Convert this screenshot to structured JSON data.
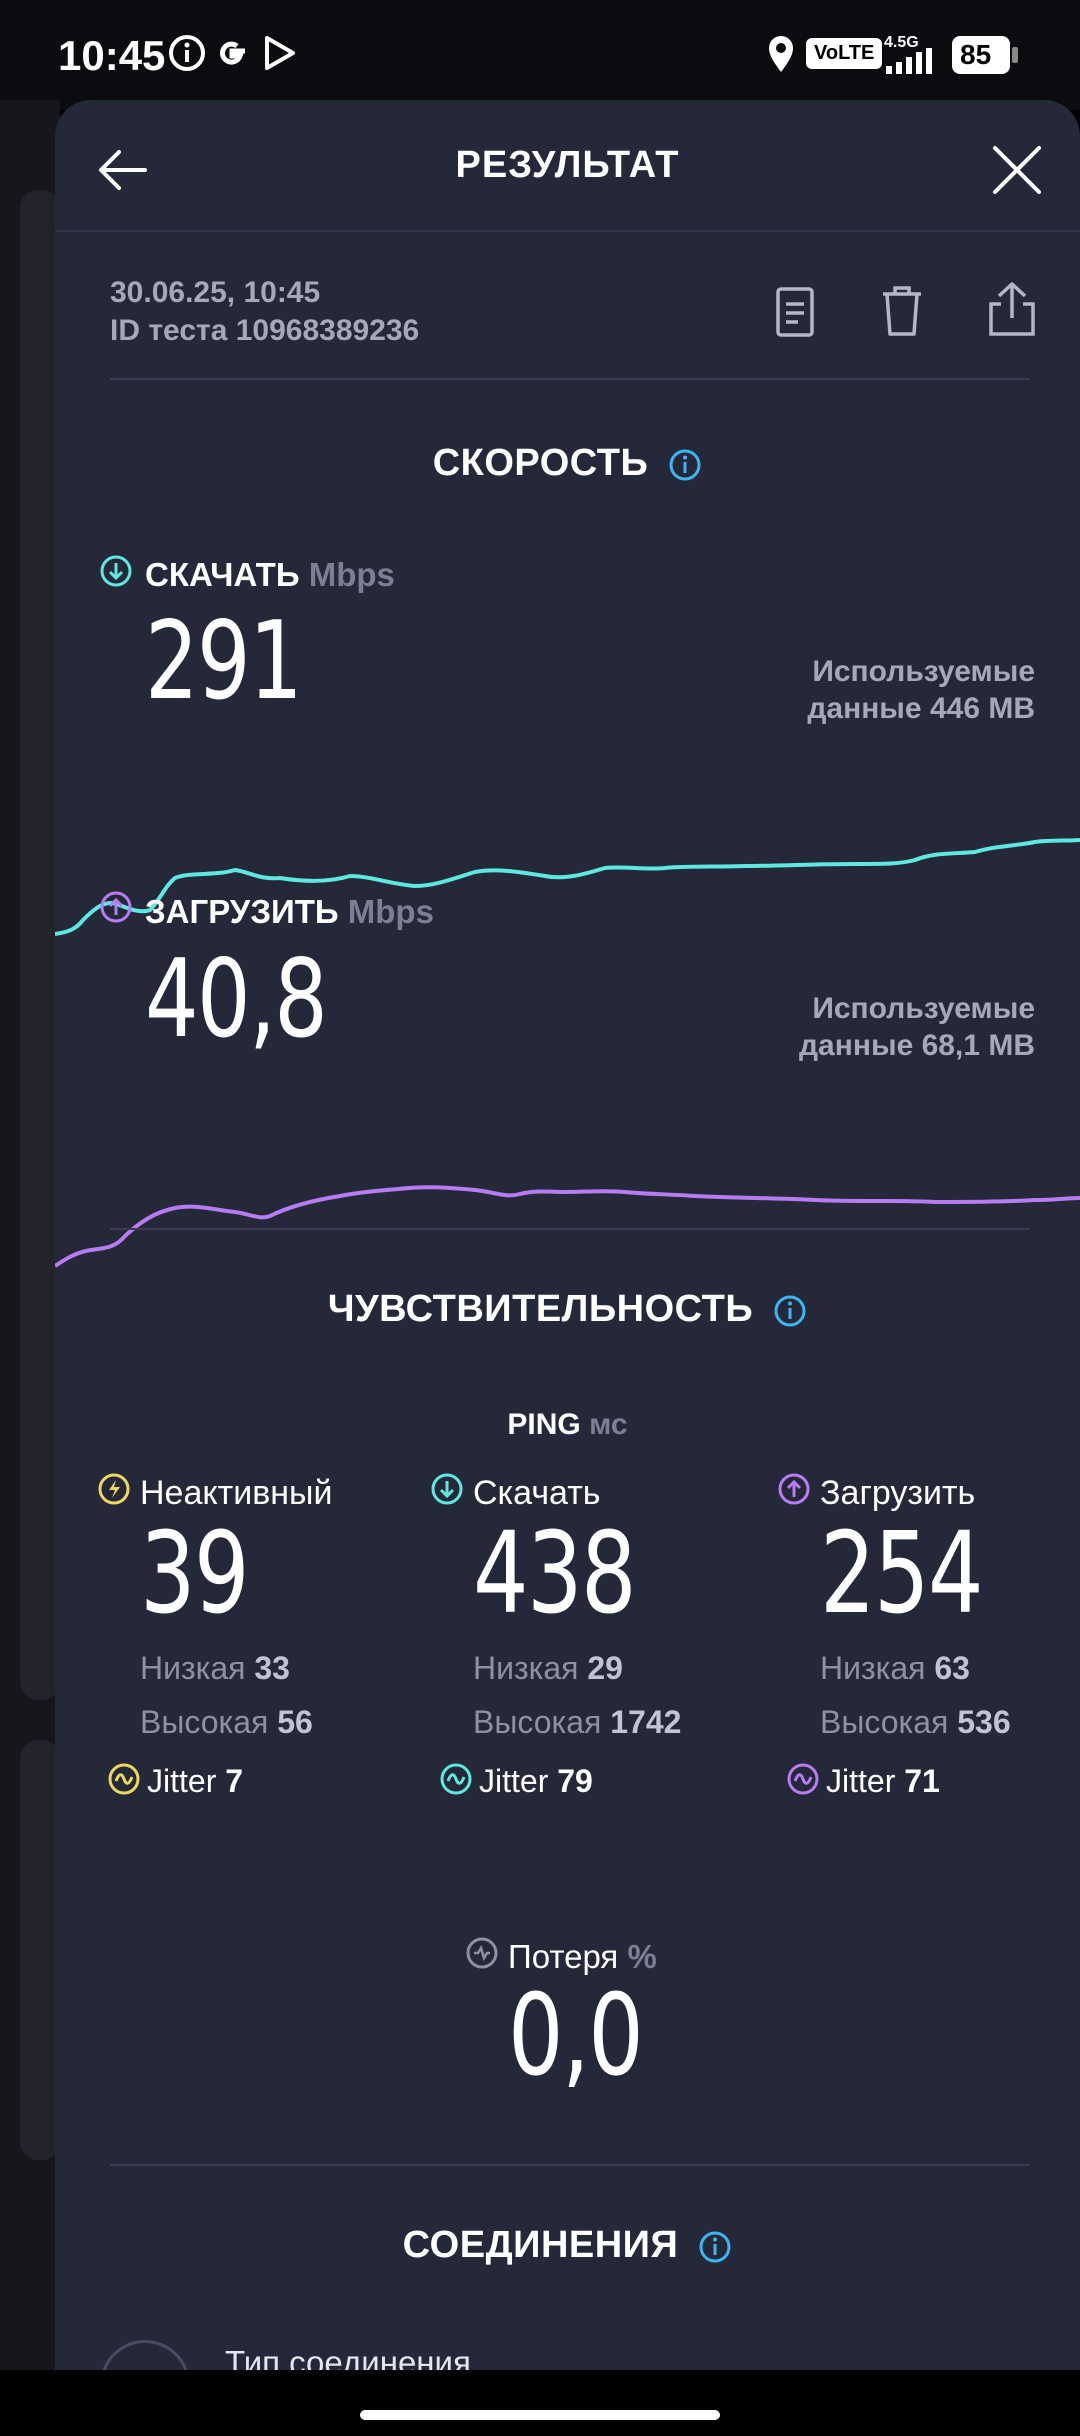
{
  "status_bar": {
    "time": "10:45",
    "network_badge": "VoLTE",
    "signal_label": "4.5G",
    "battery": "85"
  },
  "header": {
    "title": "РЕЗУЛЬТАТ"
  },
  "meta": {
    "datetime": "30.06.25, 10:45",
    "test_id": "ID теста 10968389236"
  },
  "speed": {
    "title": "СКОРОСТЬ",
    "download": {
      "label": "СКАЧАТЬ",
      "unit": "Mbps",
      "value": "291",
      "used_line1": "Используемые",
      "used_line2": "данные 446 MB",
      "color": "#5ee8e0"
    },
    "upload": {
      "label": "ЗАГРУЗИТЬ",
      "unit": "Mbps",
      "value": "40,8",
      "used_line1": "Используемые",
      "used_line2": "данные 68,1 MB",
      "color": "#b77cf2"
    }
  },
  "sensitivity": {
    "title": "ЧУВСТВИТЕЛЬНОСТЬ",
    "ping_label": "PING",
    "ping_unit": "мс",
    "low_label": "Низкая",
    "high_label": "Высокая",
    "jitter_label": "Jitter",
    "columns": [
      {
        "label": "Неактивный",
        "value": "39",
        "low": "33",
        "high": "56",
        "jitter": "7",
        "color": "#ecd860"
      },
      {
        "label": "Скачать",
        "value": "438",
        "low": "29",
        "high": "1742",
        "jitter": "79",
        "color": "#5ee8e0"
      },
      {
        "label": "Загрузить",
        "value": "254",
        "low": "63",
        "high": "536",
        "jitter": "71",
        "color": "#b77cf2"
      }
    ],
    "loss_label": "Потеря",
    "loss_unit": "%",
    "loss_value": "0,0"
  },
  "connections": {
    "title": "СОЕДИНЕНИЯ",
    "conn_type_label": "Тип соединения"
  },
  "colors": {
    "accent_blue": "#3db5f0",
    "sheet_bg": "#252839"
  }
}
